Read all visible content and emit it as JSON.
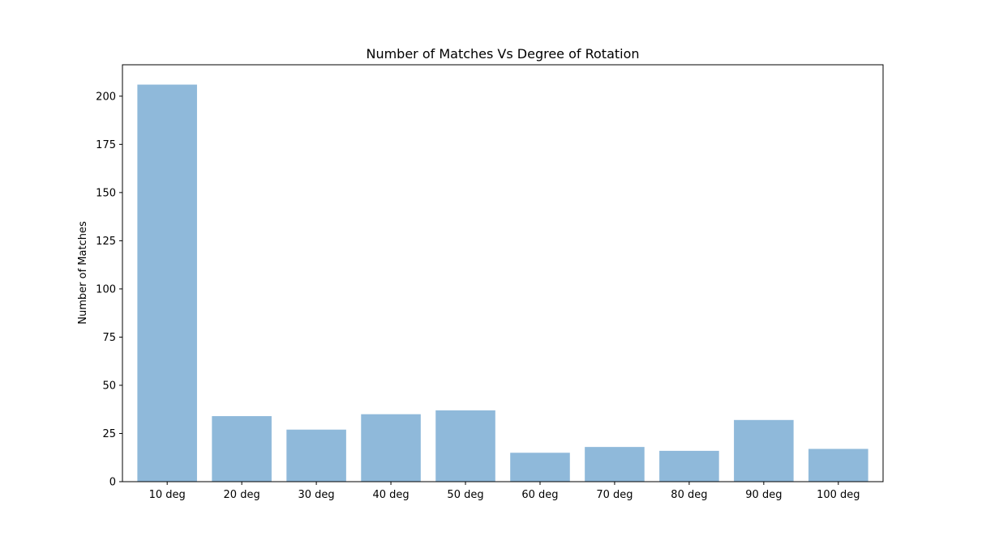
{
  "chart_data": {
    "type": "bar",
    "title": "Number of Matches Vs Degree of Rotation",
    "xlabel": "",
    "ylabel": "Number of Matches",
    "categories": [
      "10 deg",
      "20 deg",
      "30 deg",
      "40 deg",
      "50 deg",
      "60 deg",
      "70 deg",
      "80 deg",
      "90 deg",
      "100 deg"
    ],
    "values": [
      206,
      34,
      27,
      35,
      37,
      15,
      18,
      16,
      32,
      17
    ],
    "ylim": [
      0,
      216.3
    ],
    "yticks": [
      0,
      25,
      50,
      75,
      100,
      125,
      150,
      175,
      200
    ],
    "grid": false,
    "legend": "none",
    "colors": {
      "bar": "#8fb9da",
      "axes": "#000000",
      "background": "#ffffff"
    }
  }
}
